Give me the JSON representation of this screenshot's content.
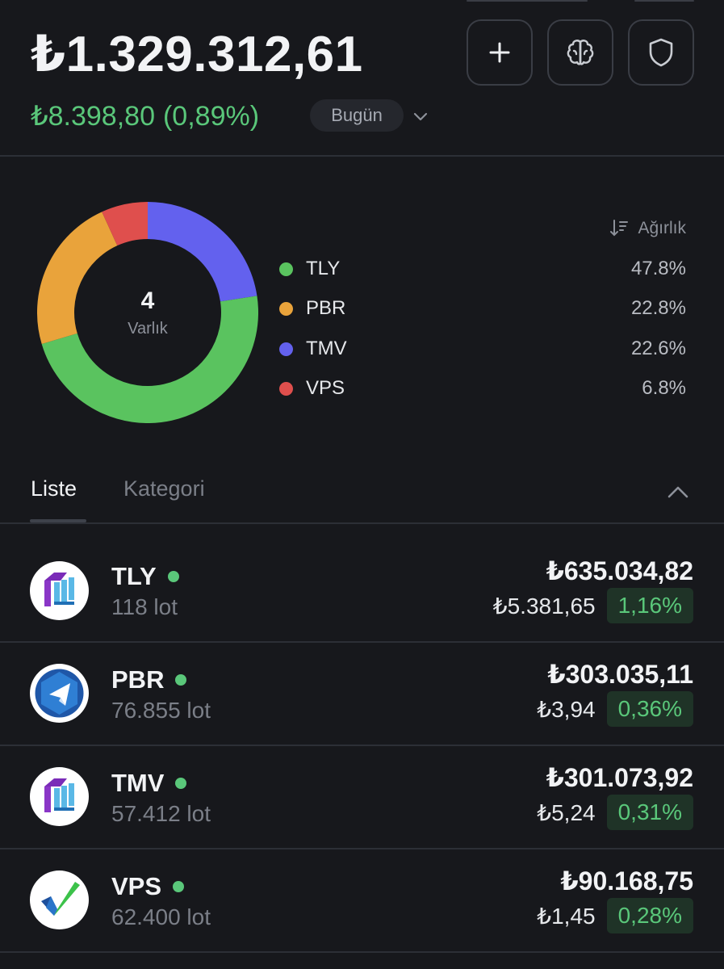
{
  "header": {
    "total_value": "₺1.329.312,61",
    "day_change_amount": "₺8.398,80",
    "day_change_pct": "(0,89%)",
    "period": "Bugün",
    "actions": [
      {
        "icon": "plus-icon"
      },
      {
        "icon": "brain-icon"
      },
      {
        "icon": "shield-icon"
      }
    ]
  },
  "allocation": {
    "count": "4",
    "count_label": "Varlık",
    "sort_label": "Ağırlık",
    "legend": [
      {
        "name": "TLY",
        "pct": "47.8%",
        "color": "#5ac35f"
      },
      {
        "name": "PBR",
        "pct": "22.8%",
        "color": "#e9a33b"
      },
      {
        "name": "TMV",
        "pct": "22.6%",
        "color": "#6361ee"
      },
      {
        "name": "VPS",
        "pct": "6.8%",
        "color": "#df4f4d"
      }
    ]
  },
  "tabs": {
    "list": "Liste",
    "category": "Kategori"
  },
  "holdings": [
    {
      "symbol": "TLY",
      "lots": "118 lot",
      "value": "₺635.034,82",
      "change": "₺5.381,65",
      "change_pct": "1,16%",
      "logo": "tly-logo"
    },
    {
      "symbol": "PBR",
      "lots": "76.855 lot",
      "value": "₺303.035,11",
      "change": "₺3,94",
      "change_pct": "0,36%",
      "logo": "pbr-logo"
    },
    {
      "symbol": "TMV",
      "lots": "57.412 lot",
      "value": "₺301.073,92",
      "change": "₺5,24",
      "change_pct": "0,31%",
      "logo": "tmv-logo"
    },
    {
      "symbol": "VPS",
      "lots": "62.400 lot",
      "value": "₺90.168,75",
      "change": "₺1,45",
      "change_pct": "0,28%",
      "logo": "vps-logo"
    }
  ],
  "colors": {
    "background": "#17181c",
    "positive": "#5ac77a",
    "positive_bg": "#1f3327"
  }
}
